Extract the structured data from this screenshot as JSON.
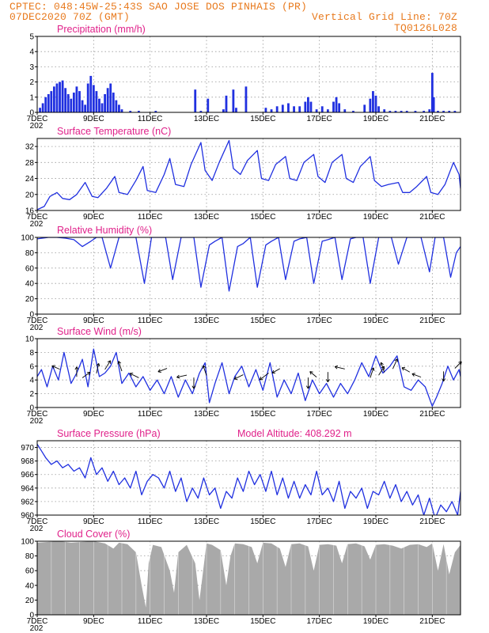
{
  "header": {
    "line1": "CPTEC:   048:45W-25:43S  SAO JOSE DOS PINHAIS (PR)",
    "line2_left": "07DEC2020 70Z (GMT)",
    "line2_right": "Vertical Grid Line: 70Z",
    "line3_right": "TQ0126L028"
  },
  "colors": {
    "series": "#2030e0",
    "cloud": "#a9a9a9",
    "title": "#e0218a",
    "header": "#e87a1e"
  },
  "x_axis": {
    "range": [
      7,
      22
    ],
    "ticks": [
      {
        "pos": 7,
        "label": "7DEC"
      },
      {
        "pos": 9,
        "label": "9DEC"
      },
      {
        "pos": 11,
        "label": "11DEC"
      },
      {
        "pos": 13,
        "label": "13DEC"
      },
      {
        "pos": 15,
        "label": "15DEC"
      },
      {
        "pos": 17,
        "label": "17DEC"
      },
      {
        "pos": 19,
        "label": "19DEC"
      },
      {
        "pos": 21,
        "label": "21DEC"
      }
    ],
    "year_hint": "202"
  },
  "chart_data": [
    {
      "id": "precip",
      "type": "bar",
      "title": "Precipitation (mm/h)",
      "ylim": [
        0,
        5
      ],
      "yticks": [
        0,
        1,
        2,
        3,
        4,
        5
      ],
      "grid": true,
      "x": [
        7.1,
        7.2,
        7.3,
        7.4,
        7.5,
        7.6,
        7.7,
        7.8,
        7.9,
        8.0,
        8.1,
        8.2,
        8.3,
        8.4,
        8.5,
        8.6,
        8.7,
        8.8,
        8.9,
        9.0,
        9.1,
        9.2,
        9.3,
        9.4,
        9.5,
        9.6,
        9.7,
        9.8,
        9.9,
        10.0,
        10.3,
        10.6,
        11.2,
        12.6,
        12.8,
        13.05,
        13.6,
        13.7,
        13.95,
        14.05,
        14.4,
        15.1,
        15.3,
        15.5,
        15.7,
        15.9,
        16.1,
        16.3,
        16.5,
        16.6,
        16.7,
        16.9,
        17.1,
        17.3,
        17.5,
        17.6,
        17.7,
        17.9,
        18.2,
        18.6,
        18.8,
        18.9,
        19.0,
        19.1,
        19.3,
        19.5,
        19.7,
        19.9,
        20.1,
        20.4,
        20.7,
        20.9,
        21.0,
        21.05,
        21.2,
        21.4,
        21.6,
        21.8
      ],
      "values": [
        0.3,
        0.6,
        1.0,
        1.2,
        1.4,
        1.7,
        1.9,
        2.0,
        2.1,
        1.6,
        1.2,
        0.9,
        1.3,
        1.7,
        1.4,
        0.8,
        0.5,
        1.9,
        2.4,
        1.8,
        1.4,
        0.9,
        0.6,
        1.2,
        1.6,
        1.9,
        1.3,
        0.8,
        0.5,
        0.2,
        0.1,
        0.1,
        0.1,
        1.5,
        0.1,
        0.9,
        0.2,
        1.1,
        1.5,
        0.3,
        1.7,
        0.3,
        0.2,
        0.4,
        0.5,
        0.6,
        0.4,
        0.4,
        0.7,
        1.0,
        0.7,
        0.2,
        0.4,
        0.2,
        0.7,
        1.0,
        0.6,
        0.2,
        0.1,
        0.5,
        0.9,
        1.4,
        1.1,
        0.4,
        0.2,
        0.1,
        0.1,
        0.1,
        0.1,
        0.1,
        0.1,
        0.2,
        2.6,
        1.0,
        0.1,
        0.1,
        0.1,
        0.1
      ]
    },
    {
      "id": "temp",
      "type": "line",
      "title": "Surface Temperature (nC)",
      "ylim": [
        16,
        34
      ],
      "yticks": [
        16,
        20,
        24,
        28,
        32
      ],
      "grid": true,
      "x": [
        7.0,
        7.25,
        7.45,
        7.7,
        7.9,
        8.15,
        8.4,
        8.7,
        8.95,
        9.15,
        9.45,
        9.75,
        9.9,
        10.2,
        10.5,
        10.75,
        10.9,
        11.2,
        11.5,
        11.7,
        11.9,
        12.2,
        12.45,
        12.8,
        12.95,
        13.2,
        13.45,
        13.8,
        13.95,
        14.2,
        14.45,
        14.8,
        14.95,
        15.2,
        15.45,
        15.8,
        15.95,
        16.2,
        16.45,
        16.8,
        16.95,
        17.2,
        17.45,
        17.8,
        17.95,
        18.2,
        18.45,
        18.8,
        18.95,
        19.2,
        19.45,
        19.8,
        19.95,
        20.2,
        20.45,
        20.8,
        20.95,
        21.2,
        21.45,
        21.75,
        21.95,
        22.0
      ],
      "values": [
        16.2,
        17.0,
        19.5,
        20.5,
        19.0,
        18.7,
        20.0,
        23.0,
        19.5,
        19.2,
        21.5,
        24.5,
        20.5,
        20.0,
        23.5,
        27.0,
        21.0,
        20.5,
        25.0,
        29.0,
        22.5,
        22.0,
        27.5,
        33.0,
        26.0,
        23.5,
        28.0,
        33.5,
        26.5,
        25.0,
        28.5,
        31.0,
        24.0,
        23.5,
        27.5,
        29.5,
        24.0,
        23.5,
        28.0,
        30.0,
        24.5,
        23.0,
        28.0,
        30.0,
        24.0,
        23.0,
        27.0,
        29.5,
        23.5,
        22.0,
        22.5,
        23.0,
        20.5,
        20.5,
        22.0,
        24.5,
        20.5,
        20.0,
        22.5,
        28.0,
        25.0,
        21.5
      ]
    },
    {
      "id": "rh",
      "type": "line",
      "title": "Relative Humidity (%)",
      "ylim": [
        0,
        100
      ],
      "yticks": [
        0,
        20,
        40,
        60,
        80,
        100
      ],
      "grid": true,
      "x": [
        7.0,
        7.4,
        7.7,
        8.0,
        8.3,
        8.6,
        8.9,
        9.1,
        9.3,
        9.6,
        9.9,
        10.2,
        10.5,
        10.8,
        11.05,
        11.3,
        11.55,
        11.8,
        12.1,
        12.3,
        12.55,
        12.8,
        13.1,
        13.3,
        13.55,
        13.8,
        14.1,
        14.3,
        14.55,
        14.8,
        15.1,
        15.3,
        15.55,
        15.8,
        16.1,
        16.3,
        16.55,
        16.8,
        17.1,
        17.3,
        17.55,
        17.8,
        18.1,
        18.3,
        18.55,
        18.8,
        19.1,
        19.3,
        19.55,
        19.8,
        20.1,
        20.3,
        20.6,
        20.9,
        21.1,
        21.4,
        21.65,
        21.85,
        22.0
      ],
      "values": [
        98,
        100,
        100,
        99,
        97,
        88,
        95,
        100,
        100,
        60,
        100,
        100,
        100,
        40,
        100,
        100,
        100,
        45,
        100,
        100,
        100,
        35,
        90,
        95,
        100,
        30,
        88,
        92,
        100,
        35,
        90,
        95,
        100,
        45,
        95,
        98,
        100,
        40,
        95,
        97,
        100,
        45,
        98,
        100,
        100,
        40,
        100,
        100,
        100,
        65,
        100,
        100,
        100,
        55,
        100,
        100,
        48,
        80,
        88
      ]
    },
    {
      "id": "wind",
      "type": "line",
      "title": "Surface Wind (m/s)",
      "ylim": [
        0,
        10
      ],
      "yticks": [
        0,
        2,
        4,
        6,
        8,
        10
      ],
      "grid": true,
      "x": [
        7.0,
        7.15,
        7.35,
        7.55,
        7.75,
        7.95,
        8.2,
        8.4,
        8.6,
        8.8,
        9.0,
        9.2,
        9.4,
        9.6,
        9.8,
        10.0,
        10.25,
        10.5,
        10.75,
        11.0,
        11.25,
        11.5,
        11.75,
        12.0,
        12.25,
        12.5,
        12.75,
        12.95,
        13.1,
        13.3,
        13.55,
        13.8,
        14.0,
        14.25,
        14.5,
        14.75,
        15.0,
        15.25,
        15.5,
        15.75,
        16.0,
        16.25,
        16.5,
        16.75,
        17.0,
        17.25,
        17.5,
        17.75,
        18.0,
        18.25,
        18.5,
        18.75,
        19.0,
        19.25,
        19.5,
        19.75,
        20.0,
        20.25,
        20.5,
        20.75,
        21.0,
        21.15,
        21.35,
        21.55,
        21.75,
        21.95,
        22.0
      ],
      "values": [
        4.5,
        5.5,
        3.0,
        6.0,
        4.0,
        8.0,
        3.5,
        5.0,
        7.0,
        3.0,
        8.5,
        4.5,
        5.0,
        6.0,
        8.0,
        3.5,
        5.0,
        3.0,
        4.5,
        2.5,
        4.0,
        2.0,
        4.5,
        1.5,
        4.0,
        2.0,
        5.0,
        6.5,
        0.7,
        3.5,
        6.5,
        2.0,
        4.5,
        6.0,
        3.0,
        5.5,
        2.5,
        6.5,
        1.5,
        4.0,
        2.0,
        5.0,
        1.0,
        4.0,
        2.0,
        3.5,
        1.5,
        3.5,
        2.0,
        4.0,
        6.5,
        4.5,
        7.5,
        5.0,
        6.0,
        7.5,
        3.0,
        2.5,
        4.0,
        3.0,
        0.2,
        1.5,
        3.5,
        6.0,
        4.0,
        5.5,
        4.5
      ],
      "vectors": [
        {
          "x": 7.8,
          "u": -0.7,
          "v": 0.3
        },
        {
          "x": 8.4,
          "u": 0.0,
          "v": 0.9
        },
        {
          "x": 8.6,
          "u": 0.7,
          "v": 0.5
        },
        {
          "x": 9.1,
          "u": 0.2,
          "v": 0.9
        },
        {
          "x": 9.4,
          "u": 0.5,
          "v": 0.8
        },
        {
          "x": 10.0,
          "u": -0.3,
          "v": 0.9
        },
        {
          "x": 10.6,
          "u": -0.8,
          "v": 0.4
        },
        {
          "x": 11.6,
          "u": -0.8,
          "v": -0.3
        },
        {
          "x": 12.3,
          "u": -0.9,
          "v": -0.2
        },
        {
          "x": 12.55,
          "u": 0.0,
          "v": -1.0
        },
        {
          "x": 13.0,
          "u": -0.3,
          "v": 0.9
        },
        {
          "x": 14.3,
          "u": -0.8,
          "v": -0.4
        },
        {
          "x": 15.2,
          "u": -0.8,
          "v": -0.6
        },
        {
          "x": 15.6,
          "u": -0.7,
          "v": -0.4
        },
        {
          "x": 16.6,
          "u": 0.0,
          "v": -1.0
        },
        {
          "x": 16.9,
          "u": -0.6,
          "v": 0.5
        },
        {
          "x": 17.3,
          "u": 0.0,
          "v": -0.9
        },
        {
          "x": 17.9,
          "u": -0.9,
          "v": 0.2
        },
        {
          "x": 18.8,
          "u": 0.3,
          "v": 0.9
        },
        {
          "x": 19.1,
          "u": 0.5,
          "v": 0.8
        },
        {
          "x": 19.3,
          "u": -0.3,
          "v": 0.9
        },
        {
          "x": 19.6,
          "u": 0.4,
          "v": 0.9
        },
        {
          "x": 20.2,
          "u": -0.7,
          "v": 0.4
        },
        {
          "x": 20.6,
          "u": -0.8,
          "v": 0.3
        },
        {
          "x": 21.4,
          "u": 0.0,
          "v": -0.9
        },
        {
          "x": 21.8,
          "u": 0.6,
          "v": 0.6
        }
      ]
    },
    {
      "id": "pressure",
      "type": "line",
      "title": "Surface Pressure (hPa)",
      "annotation": "Model Altitude: 408.292 m",
      "ylim": [
        960,
        971
      ],
      "yticks": [
        960,
        962,
        964,
        966,
        968,
        970
      ],
      "grid": true,
      "x": [
        7.0,
        7.15,
        7.3,
        7.5,
        7.7,
        7.9,
        8.1,
        8.3,
        8.5,
        8.7,
        8.9,
        9.1,
        9.3,
        9.5,
        9.7,
        9.9,
        10.1,
        10.3,
        10.5,
        10.7,
        10.9,
        11.1,
        11.3,
        11.5,
        11.7,
        11.9,
        12.1,
        12.3,
        12.5,
        12.7,
        12.9,
        13.1,
        13.3,
        13.5,
        13.7,
        13.9,
        14.1,
        14.3,
        14.5,
        14.7,
        14.9,
        15.1,
        15.3,
        15.5,
        15.7,
        15.9,
        16.1,
        16.3,
        16.5,
        16.7,
        16.9,
        17.1,
        17.3,
        17.5,
        17.7,
        17.9,
        18.1,
        18.3,
        18.5,
        18.7,
        18.9,
        19.1,
        19.3,
        19.5,
        19.7,
        19.9,
        20.1,
        20.3,
        20.5,
        20.7,
        20.9,
        21.1,
        21.3,
        21.5,
        21.7,
        21.9,
        22.0
      ],
      "values": [
        970.5,
        969.5,
        968.5,
        967.5,
        968.0,
        967.0,
        967.5,
        966.5,
        967.0,
        965.5,
        968.5,
        966.0,
        967.0,
        965.0,
        966.5,
        964.5,
        965.5,
        964.0,
        966.5,
        963.0,
        965.0,
        966.0,
        965.5,
        964.0,
        966.5,
        963.5,
        965.5,
        962.0,
        964.0,
        962.5,
        965.5,
        963.0,
        964.0,
        961.0,
        963.5,
        962.5,
        965.5,
        963.5,
        966.5,
        964.5,
        966.0,
        963.5,
        966.5,
        963.0,
        965.5,
        962.5,
        965.0,
        962.5,
        964.5,
        963.0,
        966.5,
        963.0,
        964.0,
        962.0,
        965.0,
        961.0,
        963.5,
        962.5,
        964.0,
        961.0,
        963.5,
        963.0,
        965.0,
        962.5,
        964.5,
        962.0,
        963.5,
        961.5,
        963.0,
        960.0,
        962.5,
        959.5,
        961.5,
        960.5,
        962.0,
        960.0,
        963.5
      ]
    },
    {
      "id": "cloud",
      "type": "area",
      "title": "Cloud Cover (%)",
      "ylim": [
        0,
        100
      ],
      "yticks": [
        0,
        20,
        40,
        60,
        80,
        100
      ],
      "grid": true,
      "x": [
        7.0,
        7.4,
        7.8,
        8.2,
        8.6,
        9.0,
        9.4,
        9.7,
        9.9,
        10.2,
        10.5,
        10.7,
        10.85,
        10.95,
        11.1,
        11.4,
        11.7,
        11.85,
        12.0,
        12.3,
        12.6,
        12.75,
        12.85,
        13.0,
        13.2,
        13.5,
        13.7,
        13.85,
        14.0,
        14.3,
        14.6,
        14.8,
        15.0,
        15.3,
        15.6,
        15.8,
        16.0,
        16.3,
        16.6,
        16.8,
        17.0,
        17.3,
        17.6,
        17.8,
        18.0,
        18.3,
        18.6,
        18.8,
        19.0,
        19.3,
        19.6,
        19.9,
        20.2,
        20.5,
        20.8,
        21.0,
        21.2,
        21.4,
        21.6,
        21.8,
        22.0
      ],
      "values": [
        98,
        99,
        100,
        98,
        99,
        100,
        97,
        90,
        98,
        96,
        85,
        40,
        10,
        70,
        95,
        92,
        60,
        30,
        85,
        95,
        70,
        20,
        50,
        97,
        95,
        88,
        40,
        80,
        97,
        96,
        92,
        70,
        98,
        97,
        90,
        65,
        96,
        97,
        93,
        60,
        95,
        96,
        94,
        70,
        96,
        97,
        93,
        75,
        95,
        96,
        94,
        90,
        95,
        96,
        92,
        97,
        60,
        96,
        55,
        85,
        95
      ]
    }
  ]
}
